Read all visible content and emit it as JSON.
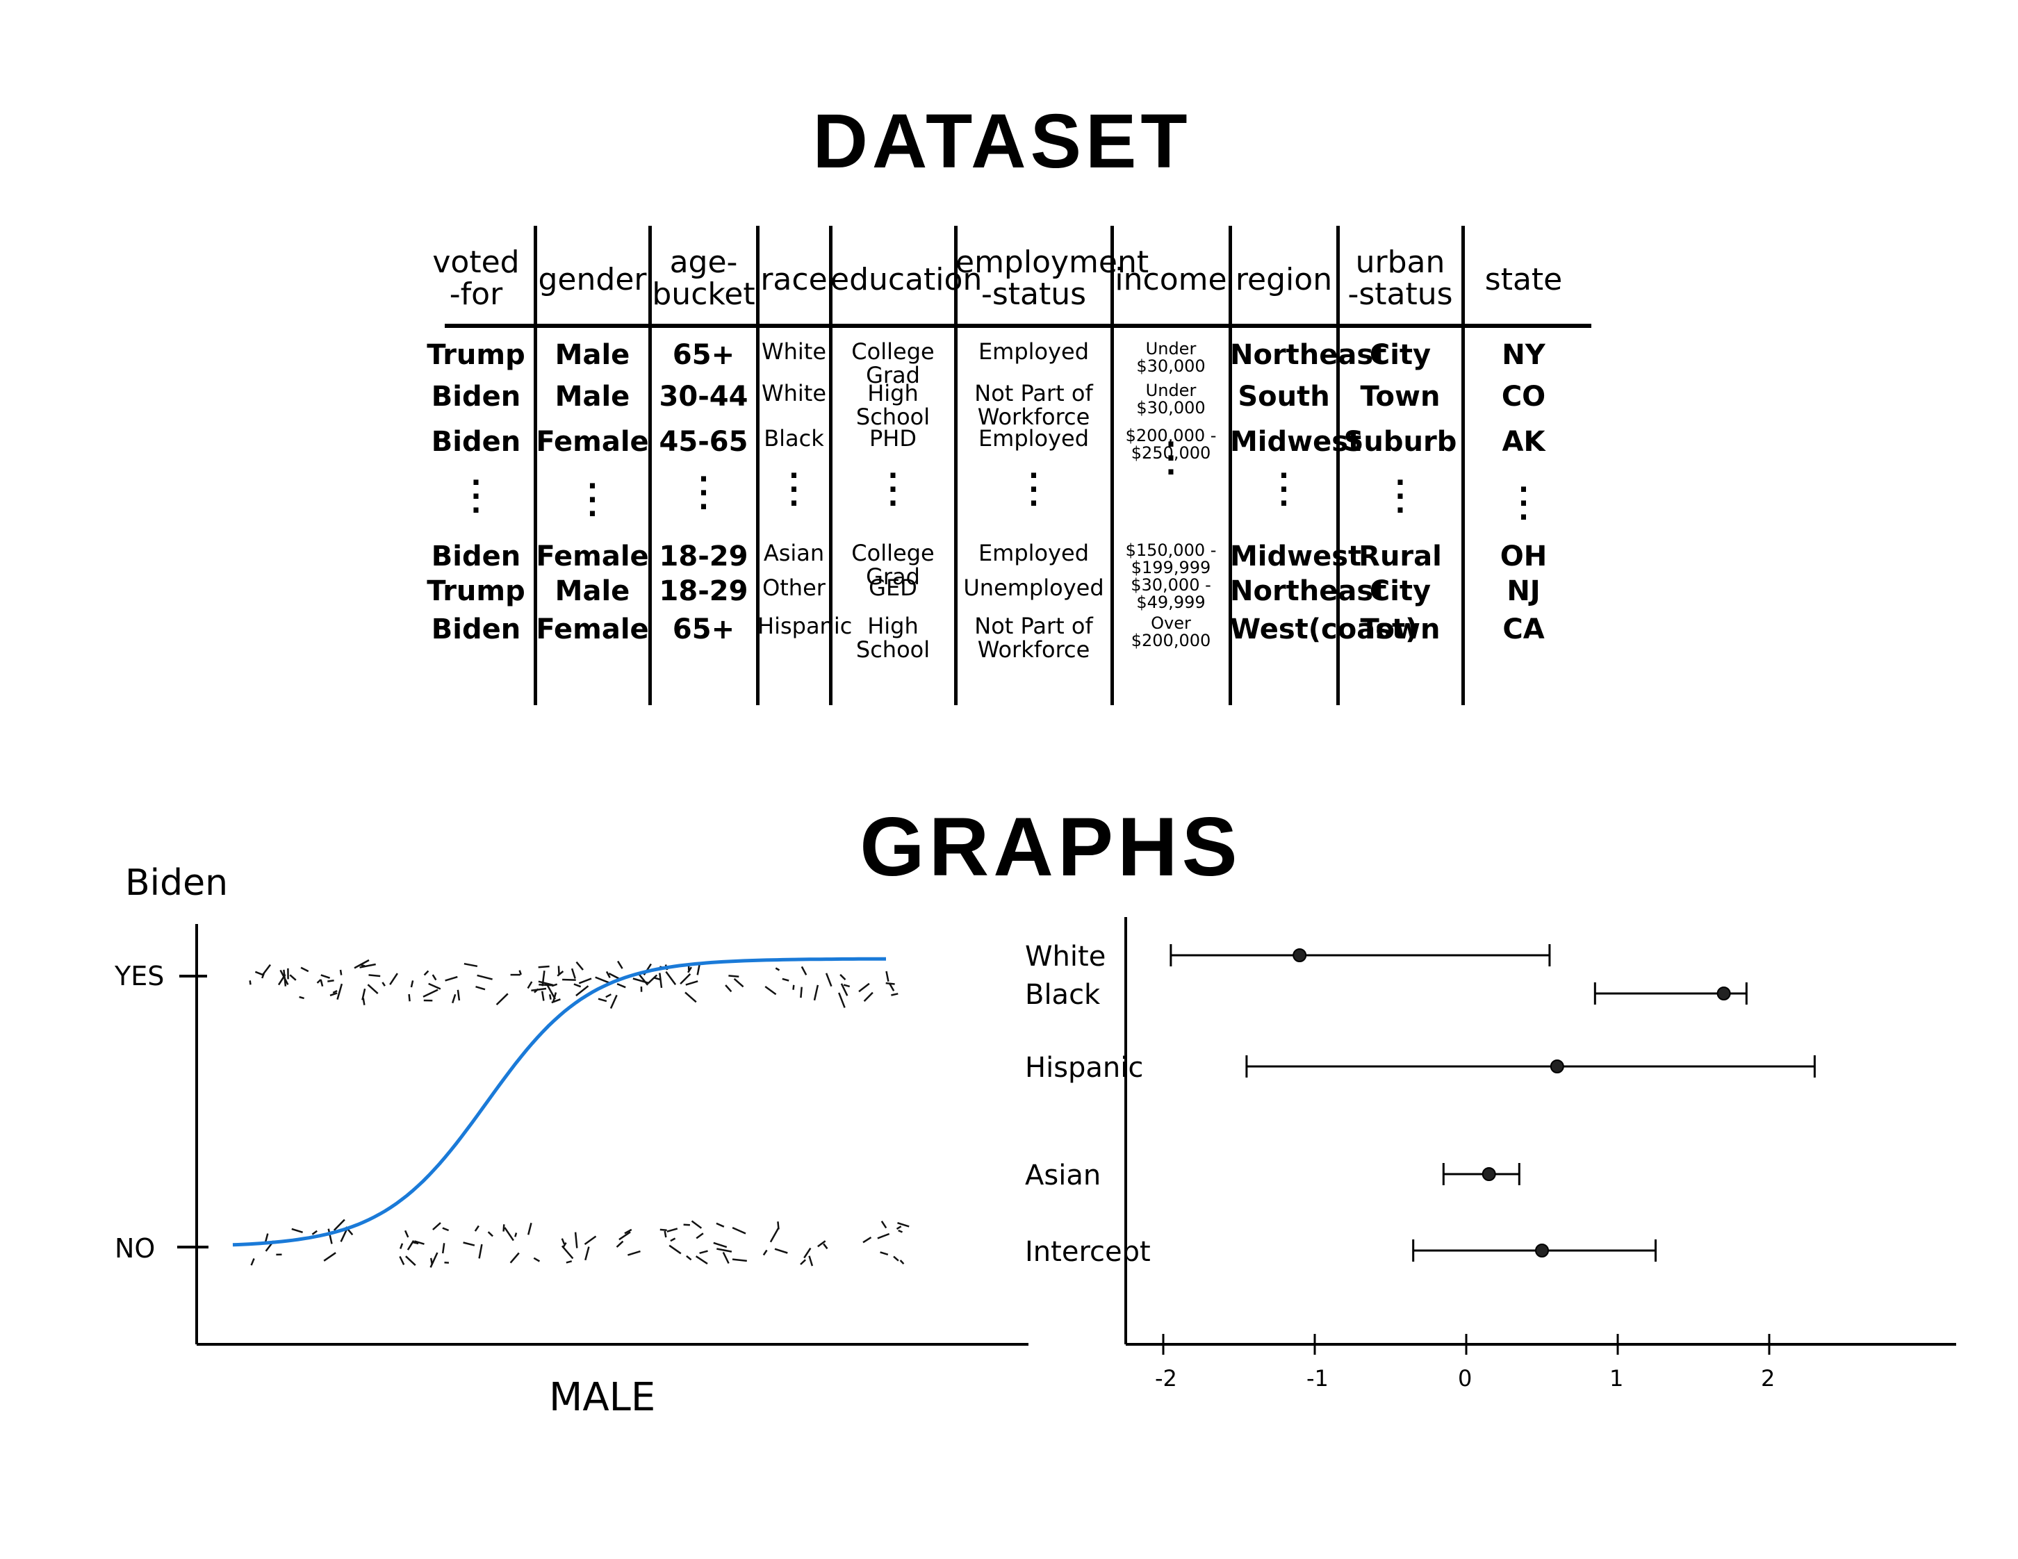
{
  "titles": {
    "dataset": "DATASET",
    "graphs": "GRAPHS"
  },
  "table": {
    "headers": [
      "voted\n-for",
      "gender",
      "age-\nbucket",
      "race",
      "education",
      "employment\n-status",
      "income",
      "region",
      "urban\n-status",
      "state"
    ],
    "top_rows": [
      [
        "Trump",
        "Male",
        "65+",
        "White",
        "College Grad",
        "Employed",
        "Under $30,000",
        "Northeast",
        "City",
        "NY"
      ],
      [
        "Biden",
        "Male",
        "30-44",
        "White",
        "High School",
        "Not Part of\nWorkforce",
        "Under $30,000",
        "South",
        "Town",
        "CO"
      ],
      [
        "Biden",
        "Female",
        "45-65",
        "Black",
        "PHD",
        "Employed",
        "$200,000 -\n$250,000",
        "Midwest",
        "Suburb",
        "AK"
      ]
    ],
    "bottom_rows": [
      [
        "Biden",
        "Female",
        "18-29",
        "Asian",
        "College Grad",
        "Employed",
        "$150,000 -\n$199,999",
        "Midwest",
        "Rural",
        "OH"
      ],
      [
        "Trump",
        "Male",
        "18-29",
        "Other",
        "GED",
        "Unemployed",
        "$30,000 -\n$49,999",
        "Northeast",
        "City",
        "NJ"
      ],
      [
        "Biden",
        "Female",
        "65+",
        "Hispanic",
        "High School",
        "Not Part of\nWorkforce",
        "Over $200,000",
        "West(coast)",
        "Town",
        "CA"
      ]
    ]
  },
  "logistic_plot": {
    "ylabel": "Biden",
    "xlabel": "MALE",
    "y_ticks": [
      "YES",
      "NO"
    ],
    "curve_color": "#1a7ad8"
  },
  "chart_data": {
    "type": "scatter",
    "title": "",
    "xlabel": "",
    "ylabel": "",
    "categories": [
      "White",
      "Black",
      "Hispanic",
      "Asian",
      "Intercept"
    ],
    "estimates": [
      -1.1,
      1.7,
      0.6,
      0.15,
      0.5
    ],
    "lower": [
      -1.95,
      0.85,
      -1.45,
      -0.15,
      -0.35
    ],
    "upper": [
      0.55,
      1.85,
      2.3,
      0.35,
      1.25
    ],
    "x_ticks": [
      "-2",
      "-1",
      "0",
      "1",
      "2"
    ],
    "xlim": [
      -2.3,
      3.3
    ],
    "grid": false
  }
}
